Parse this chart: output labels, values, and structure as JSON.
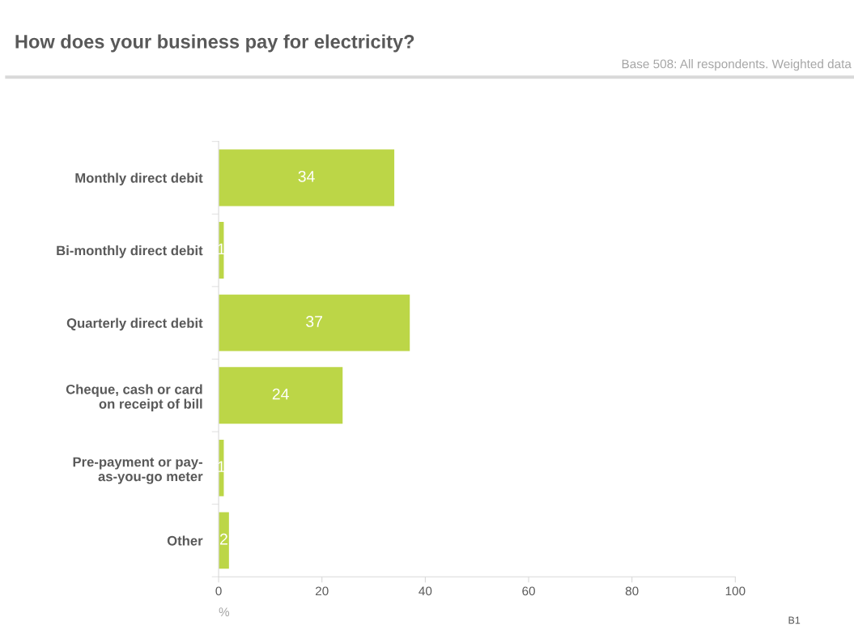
{
  "chart_data": {
    "type": "bar",
    "orientation": "horizontal",
    "title": "How does your business pay for electricity?",
    "categories": [
      "Monthly direct debit",
      "Bi-monthly direct debit",
      "Quarterly direct debit",
      "Cheque, cash or card\non receipt of bill",
      "Pre-payment or pay-\nas-you-go meter",
      "Other"
    ],
    "values": [
      34,
      1,
      37,
      24,
      1,
      2
    ],
    "color": "#bcd647",
    "xlim": [
      0,
      100
    ],
    "xticks": [
      0,
      20,
      40,
      60,
      80,
      100
    ],
    "xlabel": "%",
    "data_labels": true,
    "grid": false,
    "legend": false,
    "annotations": [
      "Base 508: All respondents. Weighted data",
      "B1"
    ]
  }
}
